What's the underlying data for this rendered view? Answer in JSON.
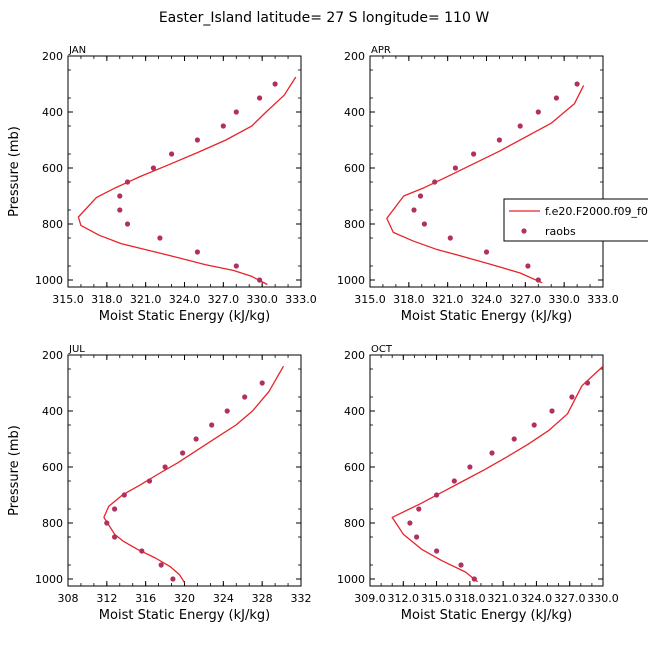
{
  "figure": {
    "title": "Easter_Island  latitude= 27 S longitude= 110 W",
    "legend": {
      "model_label": "f.e20.F2000.f09_f09.cam6_sl_2",
      "obs_label": "raobs",
      "model_color": "#e8232a",
      "obs_color": "#b03060"
    }
  },
  "chart_data": [
    {
      "type": "line",
      "panel": "JAN",
      "xlabel": "Moist Static Energy (kJ/kg)",
      "ylabel": "Pressure (mb)",
      "xlim": [
        315.0,
        333.0
      ],
      "ylim": [
        200,
        1025
      ],
      "y_inverted": true,
      "xticks": [
        "315.0",
        "318.0",
        "321.0",
        "324.0",
        "327.0",
        "330.0",
        "333.0"
      ],
      "yticks": [
        "200",
        "400",
        "600",
        "800",
        "1000"
      ],
      "series": [
        {
          "name": "f.e20.F2000.f09_f09.cam6_sl_2",
          "kind": "line",
          "x": [
            330.4,
            329.2,
            327.8,
            325.6,
            323.5,
            321.3,
            319.1,
            317.4,
            316.0,
            315.8,
            317.2,
            318.7,
            320.6,
            322.7,
            325.0,
            327.2,
            329.2,
            330.3,
            331.7,
            332.6
          ],
          "y": [
            1016,
            987,
            966,
            945,
            920,
            895,
            870,
            840,
            805,
            775,
            705,
            670,
            630,
            590,
            545,
            500,
            450,
            400,
            340,
            275
          ]
        },
        {
          "name": "raobs",
          "kind": "scatter",
          "x": [
            329.8,
            328.0,
            325.0,
            322.1,
            319.6,
            319.0,
            319.0,
            319.6,
            321.6,
            323.0,
            325.0,
            327.0,
            328.0,
            329.8,
            331.0
          ],
          "y": [
            1000,
            950,
            900,
            850,
            800,
            750,
            700,
            650,
            600,
            550,
            500,
            450,
            400,
            350,
            300
          ]
        }
      ]
    },
    {
      "type": "line",
      "panel": "APR",
      "xlabel": "Moist Static Energy (kJ/kg)",
      "ylabel": "",
      "xlim": [
        315.0,
        333.0
      ],
      "ylim": [
        200,
        1025
      ],
      "y_inverted": true,
      "xticks": [
        "315.0",
        "318.0",
        "321.0",
        "324.0",
        "327.0",
        "330.0",
        "333.0"
      ],
      "yticks": [
        "200",
        "400",
        "600",
        "800",
        "1000"
      ],
      "series": [
        {
          "name": "f.e20.F2000.f09_f09.cam6_sl_2",
          "kind": "line",
          "x": [
            328.3,
            326.6,
            324.4,
            322.1,
            320.1,
            318.3,
            316.8,
            316.3,
            317.6,
            319.2,
            321.0,
            323.0,
            325.0,
            327.0,
            329.0,
            330.8,
            331.5
          ],
          "y": [
            1010,
            975,
            945,
            915,
            890,
            860,
            830,
            780,
            700,
            670,
            630,
            585,
            540,
            490,
            440,
            370,
            305
          ]
        },
        {
          "name": "raobs",
          "kind": "scatter",
          "x": [
            328.0,
            327.2,
            324.0,
            321.2,
            319.2,
            318.4,
            318.9,
            320.0,
            321.6,
            323.0,
            325.0,
            326.6,
            328.0,
            329.4,
            331.0
          ],
          "y": [
            1000,
            950,
            900,
            850,
            800,
            750,
            700,
            650,
            600,
            550,
            500,
            450,
            400,
            350,
            300
          ]
        }
      ]
    },
    {
      "type": "line",
      "panel": "JUL",
      "xlabel": "Moist Static Energy (kJ/kg)",
      "ylabel": "Pressure (mb)",
      "xlim": [
        308,
        332
      ],
      "ylim": [
        200,
        1025
      ],
      "y_inverted": true,
      "xticks": [
        "308",
        "312",
        "316",
        "320",
        "324",
        "328",
        "332"
      ],
      "yticks": [
        "200",
        "400",
        "600",
        "800",
        "1000"
      ],
      "series": [
        {
          "name": "f.e20.F2000.f09_f09.cam6_sl_2",
          "kind": "line",
          "x": [
            320.0,
            319.5,
            318.5,
            317.0,
            315.2,
            313.7,
            312.8,
            311.7,
            312.2,
            313.6,
            315.4,
            317.3,
            319.3,
            321.3,
            323.3,
            325.3,
            327.0,
            328.7,
            330.2
          ],
          "y": [
            1013,
            985,
            955,
            925,
            895,
            865,
            840,
            780,
            740,
            700,
            665,
            625,
            585,
            540,
            495,
            450,
            400,
            330,
            240
          ]
        },
        {
          "name": "raobs",
          "kind": "scatter",
          "x": [
            318.8,
            317.6,
            315.6,
            312.8,
            312.0,
            312.8,
            313.8,
            316.4,
            318.0,
            319.8,
            321.2,
            322.8,
            324.4,
            326.2,
            328.0
          ],
          "y": [
            1000,
            950,
            900,
            850,
            800,
            750,
            700,
            650,
            600,
            550,
            500,
            450,
            400,
            350,
            300
          ]
        }
      ]
    },
    {
      "type": "line",
      "panel": "OCT",
      "xlabel": "Moist Static Energy (kJ/kg)",
      "ylabel": "",
      "xlim": [
        309.0,
        330.0
      ],
      "ylim": [
        200,
        1025
      ],
      "y_inverted": true,
      "xticks": [
        "309.0",
        "312.0",
        "315.0",
        "318.0",
        "321.0",
        "324.0",
        "327.0",
        "330.0"
      ],
      "yticks": [
        "200",
        "400",
        "600",
        "800",
        "1000"
      ],
      "series": [
        {
          "name": "f.e20.F2000.f09_f09.cam6_sl_2",
          "kind": "line",
          "x": [
            318.7,
            317.6,
            315.5,
            313.7,
            312.0,
            311.0,
            313.6,
            315.5,
            317.4,
            319.3,
            321.3,
            323.2,
            325.1,
            326.8,
            328.1,
            330.0
          ],
          "y": [
            1010,
            975,
            935,
            895,
            840,
            780,
            730,
            690,
            650,
            610,
            565,
            520,
            470,
            410,
            310,
            240
          ]
        },
        {
          "name": "raobs",
          "kind": "scatter",
          "x": [
            318.4,
            317.2,
            315.0,
            313.2,
            312.6,
            313.4,
            315.0,
            316.6,
            318.0,
            320.0,
            322.0,
            323.8,
            325.4,
            327.2,
            328.6
          ],
          "y": [
            1000,
            950,
            900,
            850,
            800,
            750,
            700,
            650,
            600,
            550,
            500,
            450,
            400,
            350,
            300
          ]
        }
      ]
    }
  ]
}
